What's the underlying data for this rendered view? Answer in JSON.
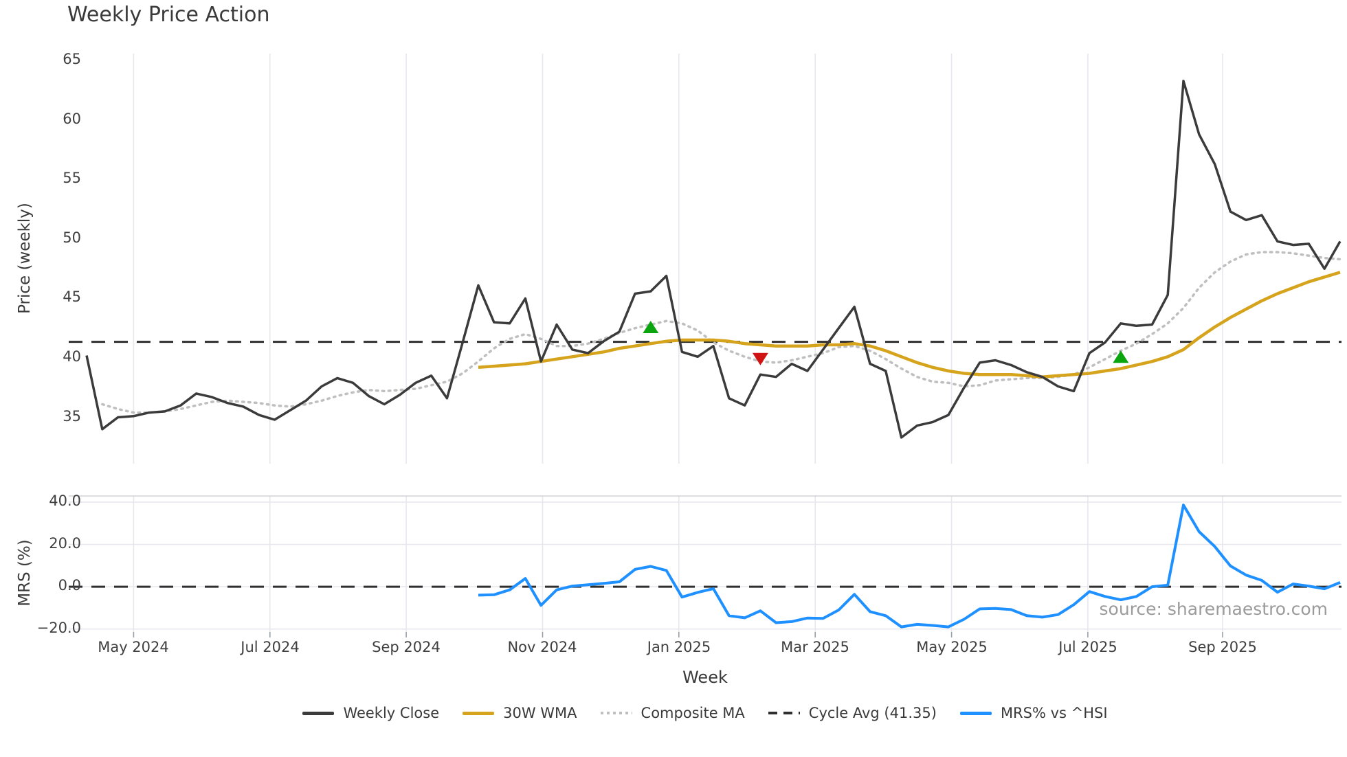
{
  "chart_data": {
    "type": "line",
    "title": "Weekly Price Action",
    "xlabel": "Week",
    "source_note": "source: sharemaestro.com",
    "colors": {
      "close": "#3b3b3b",
      "wma": "#d6a41c",
      "composite": "#bfbfbf",
      "cycle": "#2f2f2f",
      "mrs": "#1e90ff",
      "buy": "#0aa50f",
      "sell": "#cf1312",
      "grid": "#e7e7ee",
      "spine": "#d2d2d8",
      "tick": "#9aa0a6"
    },
    "x_weeks": 81,
    "x_ticks": [
      {
        "label": "May 2024",
        "week": 3.0
      },
      {
        "label": "Jul 2024",
        "week": 11.7
      },
      {
        "label": "Sep 2024",
        "week": 20.4
      },
      {
        "label": "Nov 2024",
        "week": 29.1
      },
      {
        "label": "Jan 2025",
        "week": 37.8
      },
      {
        "label": "Mar 2025",
        "week": 46.5
      },
      {
        "label": "May 2025",
        "week": 55.2
      },
      {
        "label": "Jul 2025",
        "week": 63.9
      },
      {
        "label": "Sep 2025",
        "week": 72.5
      }
    ],
    "panels": {
      "price": {
        "ylabel": "Price (weekly)",
        "ylim": [
          31.1,
          65.6
        ],
        "yticks": [
          {
            "value": 35,
            "label": "35"
          },
          {
            "value": 40,
            "label": "40"
          },
          {
            "value": 45,
            "label": "45"
          },
          {
            "value": 50,
            "label": "50"
          },
          {
            "value": 55,
            "label": "55"
          },
          {
            "value": 60,
            "label": "60"
          },
          {
            "value": 65,
            "label": "65"
          }
        ]
      },
      "mrs": {
        "ylabel": "MRS (%)",
        "ylim": [
          -21.4,
          42.9
        ],
        "yticks": [
          {
            "value": -20,
            "label": "−20.0"
          },
          {
            "value": 0,
            "label": "0.0"
          },
          {
            "value": 20,
            "label": "20.0"
          },
          {
            "value": 40,
            "label": "40.0"
          }
        ]
      }
    },
    "cycle_avg": 41.35,
    "series": {
      "weekly_close": {
        "start_week": 0,
        "values": [
          40.2,
          34.0,
          35.0,
          35.1,
          35.4,
          35.5,
          36.0,
          37.0,
          36.7,
          36.2,
          35.9,
          35.2,
          34.8,
          35.6,
          36.4,
          37.6,
          38.3,
          37.9,
          36.8,
          36.1,
          36.9,
          37.9,
          38.5,
          36.6,
          41.3,
          46.1,
          43.0,
          42.9,
          45.0,
          39.7,
          42.8,
          40.7,
          40.4,
          41.4,
          42.2,
          45.4,
          45.6,
          46.9,
          40.5,
          40.1,
          41.0,
          36.6,
          36.0,
          38.6,
          38.4,
          39.5,
          38.9,
          40.7,
          42.5,
          44.3,
          39.5,
          38.9,
          33.3,
          34.3,
          34.6,
          35.2,
          37.5,
          39.6,
          39.8,
          39.4,
          38.8,
          38.4,
          37.6,
          37.2,
          40.4,
          41.3,
          42.9,
          42.7,
          42.8,
          45.3,
          63.3,
          58.8,
          56.3,
          52.3,
          51.6,
          52.0,
          49.8,
          49.5,
          49.6,
          47.5,
          49.8
        ]
      },
      "composite_ma": {
        "start_week": 1,
        "values": [
          36.1,
          35.7,
          35.4,
          35.4,
          35.5,
          35.7,
          36.0,
          36.3,
          36.4,
          36.3,
          36.2,
          36.0,
          35.9,
          36.1,
          36.4,
          36.8,
          37.1,
          37.3,
          37.2,
          37.3,
          37.4,
          37.7,
          38.0,
          38.7,
          39.7,
          40.8,
          41.6,
          42.0,
          41.6,
          41.0,
          41.0,
          41.2,
          41.6,
          42.1,
          42.5,
          42.8,
          43.1,
          42.9,
          42.3,
          41.3,
          40.6,
          40.1,
          39.7,
          39.6,
          39.8,
          40.1,
          40.4,
          40.9,
          41.0,
          40.6,
          39.9,
          39.1,
          38.4,
          38.0,
          37.9,
          37.6,
          37.7,
          38.1,
          38.2,
          38.3,
          38.3,
          38.4,
          38.6,
          39.2,
          39.9,
          40.6,
          41.2,
          42.0,
          42.9,
          44.2,
          45.9,
          47.2,
          48.1,
          48.7,
          48.9,
          48.9,
          48.8,
          48.6,
          48.4,
          48.3
        ]
      },
      "wma_30w": {
        "start_week": 25,
        "values": [
          39.2,
          39.3,
          39.4,
          39.5,
          39.7,
          39.9,
          40.1,
          40.3,
          40.5,
          40.8,
          41.0,
          41.2,
          41.4,
          41.5,
          41.5,
          41.5,
          41.4,
          41.2,
          41.1,
          41.0,
          41.0,
          41.0,
          41.1,
          41.1,
          41.2,
          41.0,
          40.6,
          40.1,
          39.6,
          39.2,
          38.9,
          38.7,
          38.6,
          38.6,
          38.6,
          38.5,
          38.4,
          38.5,
          38.6,
          38.7,
          38.9,
          39.1,
          39.4,
          39.7,
          40.1,
          40.7,
          41.7,
          42.6,
          43.4,
          44.1,
          44.8,
          45.4,
          45.9,
          46.4,
          46.8,
          47.2
        ]
      },
      "mrs_pct": {
        "start_week": 25,
        "values": [
          -4.0,
          -3.8,
          -1.5,
          3.9,
          -8.8,
          -1.5,
          0.3,
          0.9,
          1.6,
          2.3,
          8.2,
          9.6,
          7.7,
          -4.9,
          -2.7,
          -0.9,
          -13.7,
          -14.7,
          -11.4,
          -17.0,
          -16.5,
          -14.8,
          -15.0,
          -11.0,
          -3.6,
          -11.8,
          -13.7,
          -19.0,
          -17.8,
          -18.3,
          -19.0,
          -15.4,
          -10.5,
          -10.3,
          -10.8,
          -13.7,
          -14.4,
          -13.2,
          -8.5,
          -2.3,
          -4.6,
          -6.2,
          -4.6,
          0.0,
          0.7,
          38.6,
          26.0,
          19.0,
          9.8,
          5.5,
          3.0,
          -2.6,
          1.3,
          0.3,
          -1.0,
          2.0
        ]
      }
    },
    "markers": [
      {
        "type": "buy",
        "week": 36,
        "value": 42.6
      },
      {
        "type": "sell",
        "week": 43,
        "value": 39.9
      },
      {
        "type": "buy",
        "week": 66,
        "value": 40.1
      }
    ],
    "legend": [
      {
        "label": "Weekly Close",
        "style": "solid",
        "color": "#3b3b3b"
      },
      {
        "label": "30W WMA",
        "style": "solid",
        "color": "#d6a41c"
      },
      {
        "label": "Composite MA",
        "style": "dotted",
        "color": "#bfbfbf"
      },
      {
        "label": "Cycle Avg (41.35)",
        "style": "dashed",
        "color": "#2f2f2f"
      },
      {
        "label": "MRS% vs ^HSI",
        "style": "solid",
        "color": "#1e90ff"
      }
    ]
  }
}
